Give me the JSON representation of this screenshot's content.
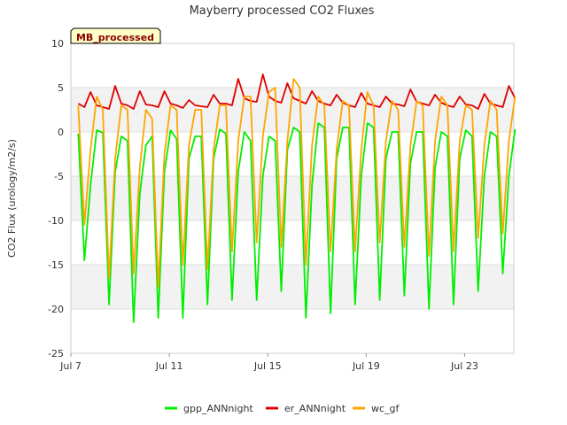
{
  "chart_data": {
    "type": "line",
    "title": "Mayberry processed CO2 Fluxes",
    "xlabel": "",
    "ylabel": "CO2 Flux (urology/m2/s)",
    "badge": "MB_processed",
    "x_range_days": [
      7,
      25
    ],
    "x_ticks": [
      {
        "day": 7,
        "label": "Jul 7"
      },
      {
        "day": 11,
        "label": "Jul 11"
      },
      {
        "day": 15,
        "label": "Jul 15"
      },
      {
        "day": 19,
        "label": "Jul 19"
      },
      {
        "day": 23,
        "label": "Jul 23"
      }
    ],
    "ylim": [
      -25,
      10
    ],
    "y_ticks": [
      10,
      5,
      0,
      -5,
      -10,
      -15,
      -20,
      -25
    ],
    "grid": true,
    "legend_position": "bottom",
    "series": [
      {
        "name": "gpp_ANNnight",
        "color": "#00ee00",
        "x_start_day": 7.3,
        "step_days": 0.25,
        "values": [
          -0.2,
          -14.5,
          -6.0,
          0.2,
          -0.1,
          -19.5,
          -4.5,
          -0.5,
          -1.0,
          -21.5,
          -7.0,
          -1.5,
          -0.5,
          -21.0,
          -4.5,
          0.2,
          -0.8,
          -21.0,
          -3.0,
          -0.5,
          -0.5,
          -19.5,
          -3.0,
          0.3,
          -0.2,
          -19.0,
          -4.5,
          0.0,
          -1.0,
          -19.0,
          -5.0,
          -0.5,
          -1.0,
          -18.0,
          -2.0,
          0.5,
          0.0,
          -21.0,
          -6.0,
          1.0,
          0.5,
          -20.5,
          -3.0,
          0.5,
          0.5,
          -19.5,
          -5.0,
          1.0,
          0.5,
          -19.0,
          -3.0,
          0.0,
          0.0,
          -18.5,
          -3.5,
          0.0,
          0.0,
          -20.0,
          -4.0,
          0.0,
          -0.5,
          -19.5,
          -3.0,
          0.2,
          -0.5,
          -18.0,
          -5.0,
          0.0,
          -0.5,
          -16.0,
          -5.0,
          0.3
        ]
      },
      {
        "name": "er_ANNnight",
        "color": "#e00000",
        "x_start_day": 7.3,
        "step_days": 0.25,
        "values": [
          3.2,
          2.8,
          4.5,
          3.0,
          2.8,
          2.6,
          5.2,
          3.2,
          3.0,
          2.6,
          4.6,
          3.1,
          3.0,
          2.8,
          4.6,
          3.2,
          3.0,
          2.7,
          3.6,
          3.0,
          2.9,
          2.8,
          4.2,
          3.2,
          3.2,
          3.0,
          6.0,
          3.8,
          3.5,
          3.4,
          6.5,
          4.0,
          3.5,
          3.3,
          5.5,
          3.8,
          3.5,
          3.2,
          4.6,
          3.5,
          3.2,
          3.0,
          4.2,
          3.3,
          3.0,
          2.8,
          4.4,
          3.2,
          3.0,
          2.8,
          4.0,
          3.2,
          3.1,
          2.9,
          4.8,
          3.4,
          3.2,
          3.0,
          4.2,
          3.3,
          3.0,
          2.8,
          4.0,
          3.1,
          3.0,
          2.6,
          4.3,
          3.2,
          3.0,
          2.8,
          5.2,
          3.8
        ]
      },
      {
        "name": "wc_gf",
        "color": "#ffa500",
        "x_start_day": 7.3,
        "step_days": 0.25,
        "values": [
          3.0,
          -10.5,
          -2.0,
          4.0,
          2.5,
          -16.5,
          -3.0,
          3.0,
          2.5,
          -16.0,
          -4.0,
          2.5,
          1.5,
          -17.5,
          -2.5,
          3.0,
          2.5,
          -15.0,
          -1.5,
          2.5,
          2.5,
          -15.5,
          -2.0,
          3.0,
          3.0,
          -13.5,
          -1.0,
          4.0,
          4.0,
          -12.5,
          -0.5,
          4.5,
          5.0,
          -13.0,
          -1.0,
          6.0,
          5.0,
          -15.0,
          -1.5,
          4.0,
          3.0,
          -13.5,
          -2.0,
          3.5,
          3.0,
          -13.5,
          -2.0,
          4.5,
          3.0,
          -12.5,
          -1.0,
          3.5,
          2.5,
          -13.0,
          -1.5,
          3.5,
          3.0,
          -14.0,
          -1.0,
          4.0,
          3.0,
          -13.5,
          -1.0,
          3.0,
          2.5,
          -12.0,
          -1.5,
          3.5,
          2.5,
          -11.5,
          -1.0,
          4.0
        ]
      }
    ]
  }
}
